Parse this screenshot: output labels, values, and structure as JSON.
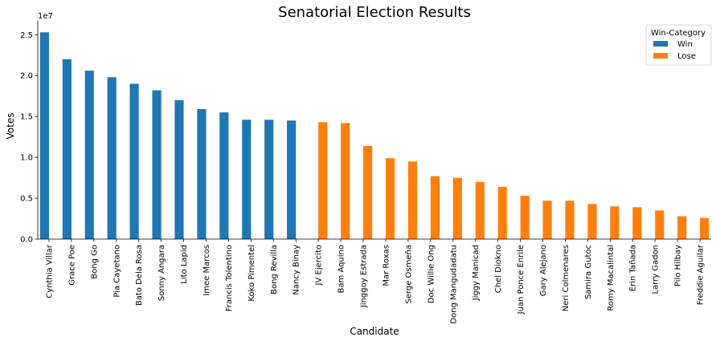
{
  "chart_data": {
    "type": "bar",
    "title": "Senatorial Election Results",
    "xlabel": "Candidate",
    "ylabel": "Votes",
    "y_offset_label": "1e7",
    "ylim": [
      0,
      26500000
    ],
    "yticks": [
      0,
      5000000,
      10000000,
      15000000,
      20000000,
      25000000
    ],
    "ytick_labels": [
      "0.0",
      "0.5",
      "1.0",
      "1.5",
      "2.0",
      "2.5"
    ],
    "grid": false,
    "legend": {
      "title": "Win-Category",
      "position": "top-right"
    },
    "categories": [
      "Cynthia Villar",
      "Grace Poe",
      "Bong Go",
      "Pia Cayetano",
      "Bato Dela Rosa",
      "Sonny Angara",
      "Lito Lapid",
      "Imee Marcos",
      "Francis Tolentino",
      "Koko Pimentel",
      "Bong Revilla",
      "Nancy Binay",
      "JV Ejercito",
      "Bam Aquino",
      "Jinggoy Estrada",
      "Mar Roxas",
      "Serge Osmeña",
      "Doc Willie Ong",
      "Dong Mangudadatu",
      "Jiggy Manicad",
      "Chel Diokno",
      "Juan Ponce Enrile",
      "Gary Alejano",
      "Neri Colmenares",
      "Samira Gutoc",
      "Romy Macalintal",
      "Erin Tañada",
      "Larry Gadon",
      "Pilo Hilbay",
      "Freddie Aguilar"
    ],
    "series": [
      {
        "name": "Win",
        "color": "#1f77b4",
        "values": [
          25300000,
          22000000,
          20600000,
          19800000,
          19000000,
          18200000,
          17000000,
          15900000,
          15500000,
          14600000,
          14600000,
          14500000,
          null,
          null,
          null,
          null,
          null,
          null,
          null,
          null,
          null,
          null,
          null,
          null,
          null,
          null,
          null,
          null,
          null,
          null
        ]
      },
      {
        "name": "Lose",
        "color": "#ff7f0e",
        "values": [
          null,
          null,
          null,
          null,
          null,
          null,
          null,
          null,
          null,
          null,
          null,
          null,
          14300000,
          14200000,
          11400000,
          9900000,
          9500000,
          7700000,
          7500000,
          7000000,
          6400000,
          5300000,
          4700000,
          4700000,
          4300000,
          4000000,
          3900000,
          3500000,
          2800000,
          2600000
        ]
      }
    ]
  }
}
